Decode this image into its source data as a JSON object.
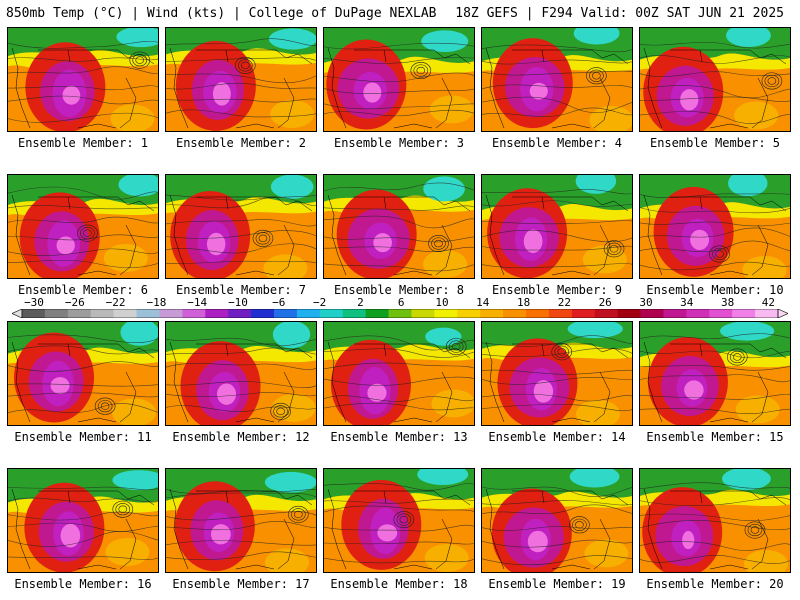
{
  "header": {
    "left": "850mb Temp (°C) | Wind (kts) | College of DuPage NEXLAB",
    "right": "18Z GEFS | F294 Valid: 00Z SAT JUN 21 2025"
  },
  "panels": [
    {
      "label": "Ensemble Member: 1"
    },
    {
      "label": "Ensemble Member: 2"
    },
    {
      "label": "Ensemble Member: 3"
    },
    {
      "label": "Ensemble Member: 4"
    },
    {
      "label": "Ensemble Member: 5"
    },
    {
      "label": "Ensemble Member: 6"
    },
    {
      "label": "Ensemble Member: 7"
    },
    {
      "label": "Ensemble Member: 8"
    },
    {
      "label": "Ensemble Member: 9"
    },
    {
      "label": "Ensemble Member: 10"
    },
    {
      "label": "Ensemble Member: 11"
    },
    {
      "label": "Ensemble Member: 12"
    },
    {
      "label": "Ensemble Member: 13"
    },
    {
      "label": "Ensemble Member: 14"
    },
    {
      "label": "Ensemble Member: 15"
    },
    {
      "label": "Ensemble Member: 16"
    },
    {
      "label": "Ensemble Member: 17"
    },
    {
      "label": "Ensemble Member: 18"
    },
    {
      "label": "Ensemble Member: 19"
    },
    {
      "label": "Ensemble Member: 20"
    }
  ],
  "colorbar": {
    "ticks": [
      "−30",
      "−26",
      "−22",
      "−18",
      "−14",
      "−10",
      "−6",
      "−2",
      "2",
      "6",
      "10",
      "14",
      "18",
      "22",
      "26",
      "30",
      "34",
      "38",
      "42"
    ],
    "colors": [
      "#5c5c5c",
      "#808080",
      "#9c9c9c",
      "#b9b9b9",
      "#d0d0d0",
      "#9cc0d8",
      "#c69bd6",
      "#d060d8",
      "#ac1fc2",
      "#7020c0",
      "#2030d0",
      "#2070e8",
      "#20b0f0",
      "#20d0c8",
      "#10c080",
      "#10a020",
      "#70c010",
      "#c8d800",
      "#f0f000",
      "#f8d000",
      "#f8b000",
      "#f89000",
      "#f87000",
      "#f04810",
      "#e02020",
      "#c01020",
      "#a00010",
      "#b00050",
      "#c01890",
      "#d030b8",
      "#e050d0",
      "#f080e8",
      "#f8b8f0"
    ],
    "legend_colors": {
      "cold_teal": "#30d8c8",
      "green": "#2aa02a",
      "yellow": "#f4e800",
      "orange": "#f89000",
      "red": "#e02010",
      "magenta": "#c020c0",
      "pink": "#f070e0"
    }
  }
}
